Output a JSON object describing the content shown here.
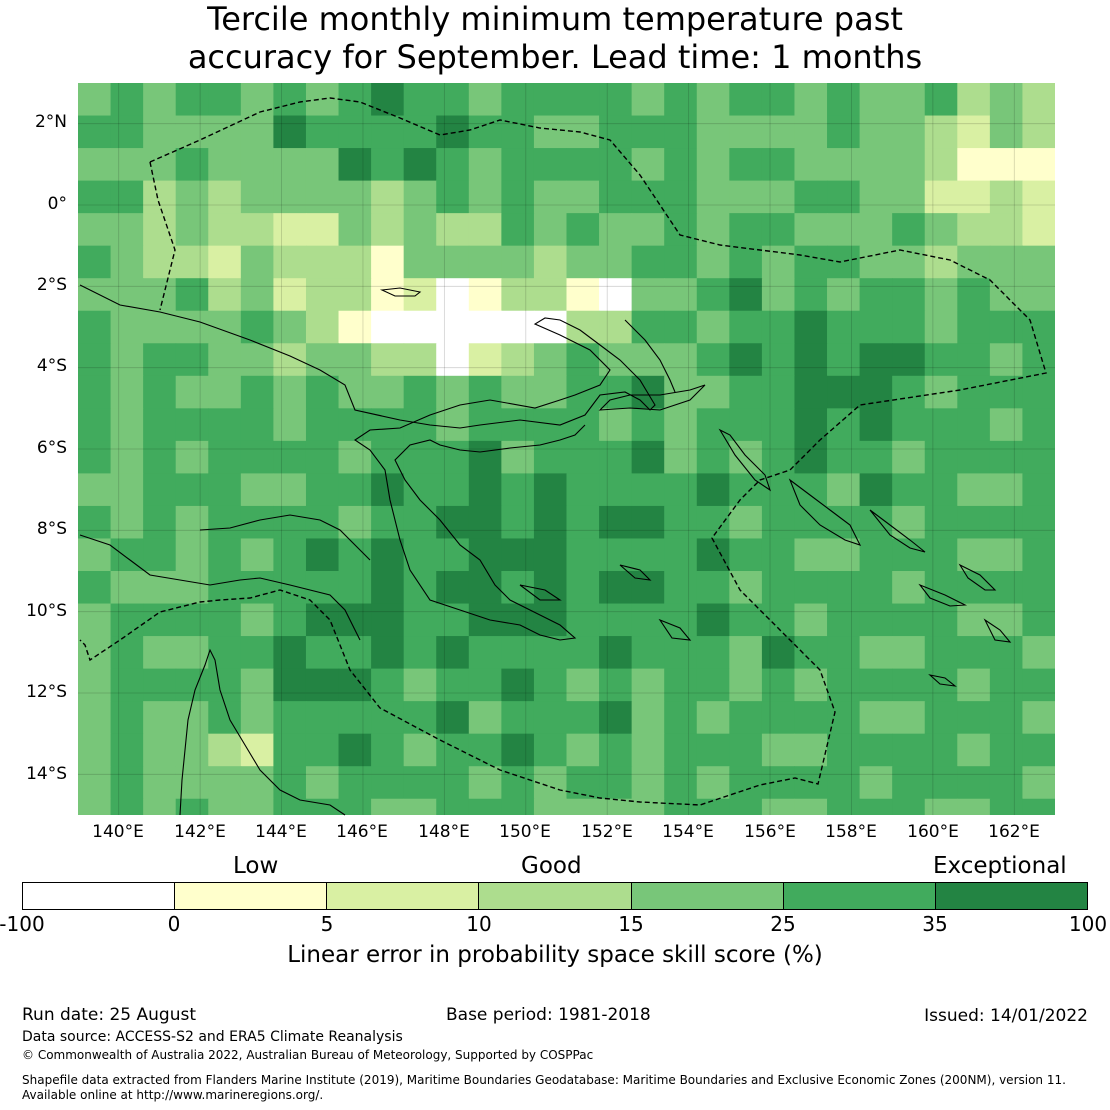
{
  "title": {
    "line1": "Tercile monthly minimum temperature past",
    "line2": "accuracy for September. Lead time: 1 months"
  },
  "map": {
    "lat_labels": [
      "2°N",
      "0°",
      "2°S",
      "4°S",
      "6°S",
      "8°S",
      "10°S",
      "12°S",
      "14°S"
    ],
    "lon_labels": [
      "140°E",
      "142°E",
      "144°E",
      "146°E",
      "148°E",
      "150°E",
      "152°E",
      "154°E",
      "156°E",
      "158°E",
      "160°E",
      "162°E"
    ],
    "lat_range": [
      -15,
      3
    ],
    "lon_range": [
      139,
      163
    ],
    "grid_resolution_deg": 0.8,
    "grid_lines": true,
    "overlays": [
      "coastlines",
      "dashed EEZ maritime boundaries"
    ]
  },
  "legend": {
    "categories": [
      "Low",
      "Good",
      "Exceptional"
    ],
    "ticks": [
      "-100",
      "0",
      "5",
      "10",
      "15",
      "25",
      "35",
      "100"
    ],
    "colors": [
      "#ffffff",
      "#ffffcc",
      "#d9f0a3",
      "#addd8e",
      "#78c679",
      "#41ab5d",
      "#238443"
    ],
    "label": "Linear error in probability space skill score (%)"
  },
  "footer": {
    "run_date": "Run date: 25 August",
    "base_period": "Base period: 1981-2018",
    "issued": "Issued: 14/01/2022",
    "data_source": "Data source: ACCESS-S2 and ERA5 Climate Reanalysis",
    "copyright": "© Commonwealth of Australia 2022, Australian Bureau of Meteorology, Supported by COSPPac",
    "shapefile_line1": "Shapefile data extracted from Flanders Marine Institute (2019), Maritime Boundaries Geodatabase: Maritime Boundaries and Exclusive Economic Zones (200NM), version 11.",
    "shapefile_line2": "Available online at http://www.marineregions.org/."
  }
}
